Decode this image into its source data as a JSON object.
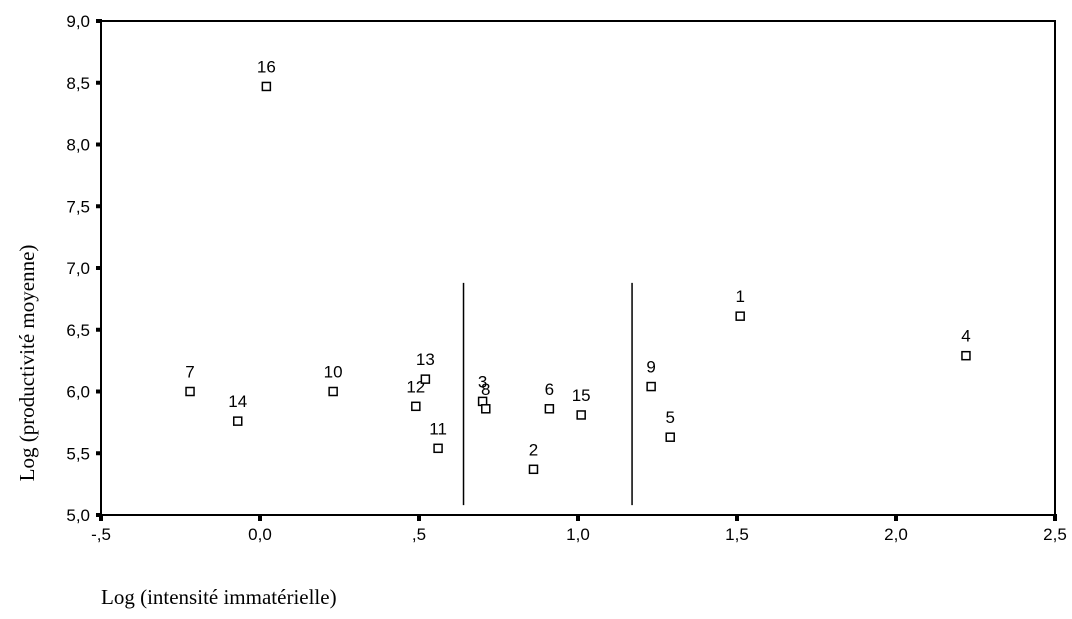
{
  "chart_data": {
    "type": "scatter",
    "xlabel": "Log (intensité immatérielle)",
    "ylabel": "Log (productivité moyenne)",
    "xlim": [
      -0.5,
      2.5
    ],
    "ylim": [
      5.0,
      9.0
    ],
    "x_ticks": [
      {
        "value": -0.5,
        "label": "-,5"
      },
      {
        "value": 0.0,
        "label": "0,0"
      },
      {
        "value": 0.5,
        "label": ",5"
      },
      {
        "value": 1.0,
        "label": "1,0"
      },
      {
        "value": 1.5,
        "label": "1,5"
      },
      {
        "value": 2.0,
        "label": "2,0"
      },
      {
        "value": 2.5,
        "label": "2,5"
      }
    ],
    "y_ticks": [
      {
        "value": 5.0,
        "label": "5,0"
      },
      {
        "value": 5.5,
        "label": "5,5"
      },
      {
        "value": 6.0,
        "label": "6,0"
      },
      {
        "value": 6.5,
        "label": "6,5"
      },
      {
        "value": 7.0,
        "label": "7,0"
      },
      {
        "value": 7.5,
        "label": "7,5"
      },
      {
        "value": 8.0,
        "label": "8,0"
      },
      {
        "value": 8.5,
        "label": "8,5"
      },
      {
        "value": 9.0,
        "label": "9,0"
      }
    ],
    "points": [
      {
        "label": "1",
        "x": 1.51,
        "y": 6.61
      },
      {
        "label": "2",
        "x": 0.86,
        "y": 5.37
      },
      {
        "label": "3",
        "x": 0.7,
        "y": 5.92
      },
      {
        "label": "4",
        "x": 2.22,
        "y": 6.29
      },
      {
        "label": "5",
        "x": 1.29,
        "y": 5.63
      },
      {
        "label": "6",
        "x": 0.91,
        "y": 5.86
      },
      {
        "label": "7",
        "x": -0.22,
        "y": 6.0
      },
      {
        "label": "8",
        "x": 0.71,
        "y": 5.86
      },
      {
        "label": "9",
        "x": 1.23,
        "y": 6.04
      },
      {
        "label": "10",
        "x": 0.23,
        "y": 6.0
      },
      {
        "label": "11",
        "x": 0.56,
        "y": 5.54
      },
      {
        "label": "12",
        "x": 0.49,
        "y": 5.88
      },
      {
        "label": "13",
        "x": 0.52,
        "y": 6.1
      },
      {
        "label": "14",
        "x": -0.07,
        "y": 5.76
      },
      {
        "label": "15",
        "x": 1.01,
        "y": 5.81
      },
      {
        "label": "16",
        "x": 0.02,
        "y": 8.47
      }
    ],
    "vertical_lines": [
      {
        "x": 0.64,
        "y_from": 5.08,
        "y_to": 6.88
      },
      {
        "x": 1.17,
        "y_from": 5.08,
        "y_to": 6.88
      }
    ],
    "marker": "open-square",
    "grid": false,
    "legend": "none",
    "color": "#000000"
  }
}
